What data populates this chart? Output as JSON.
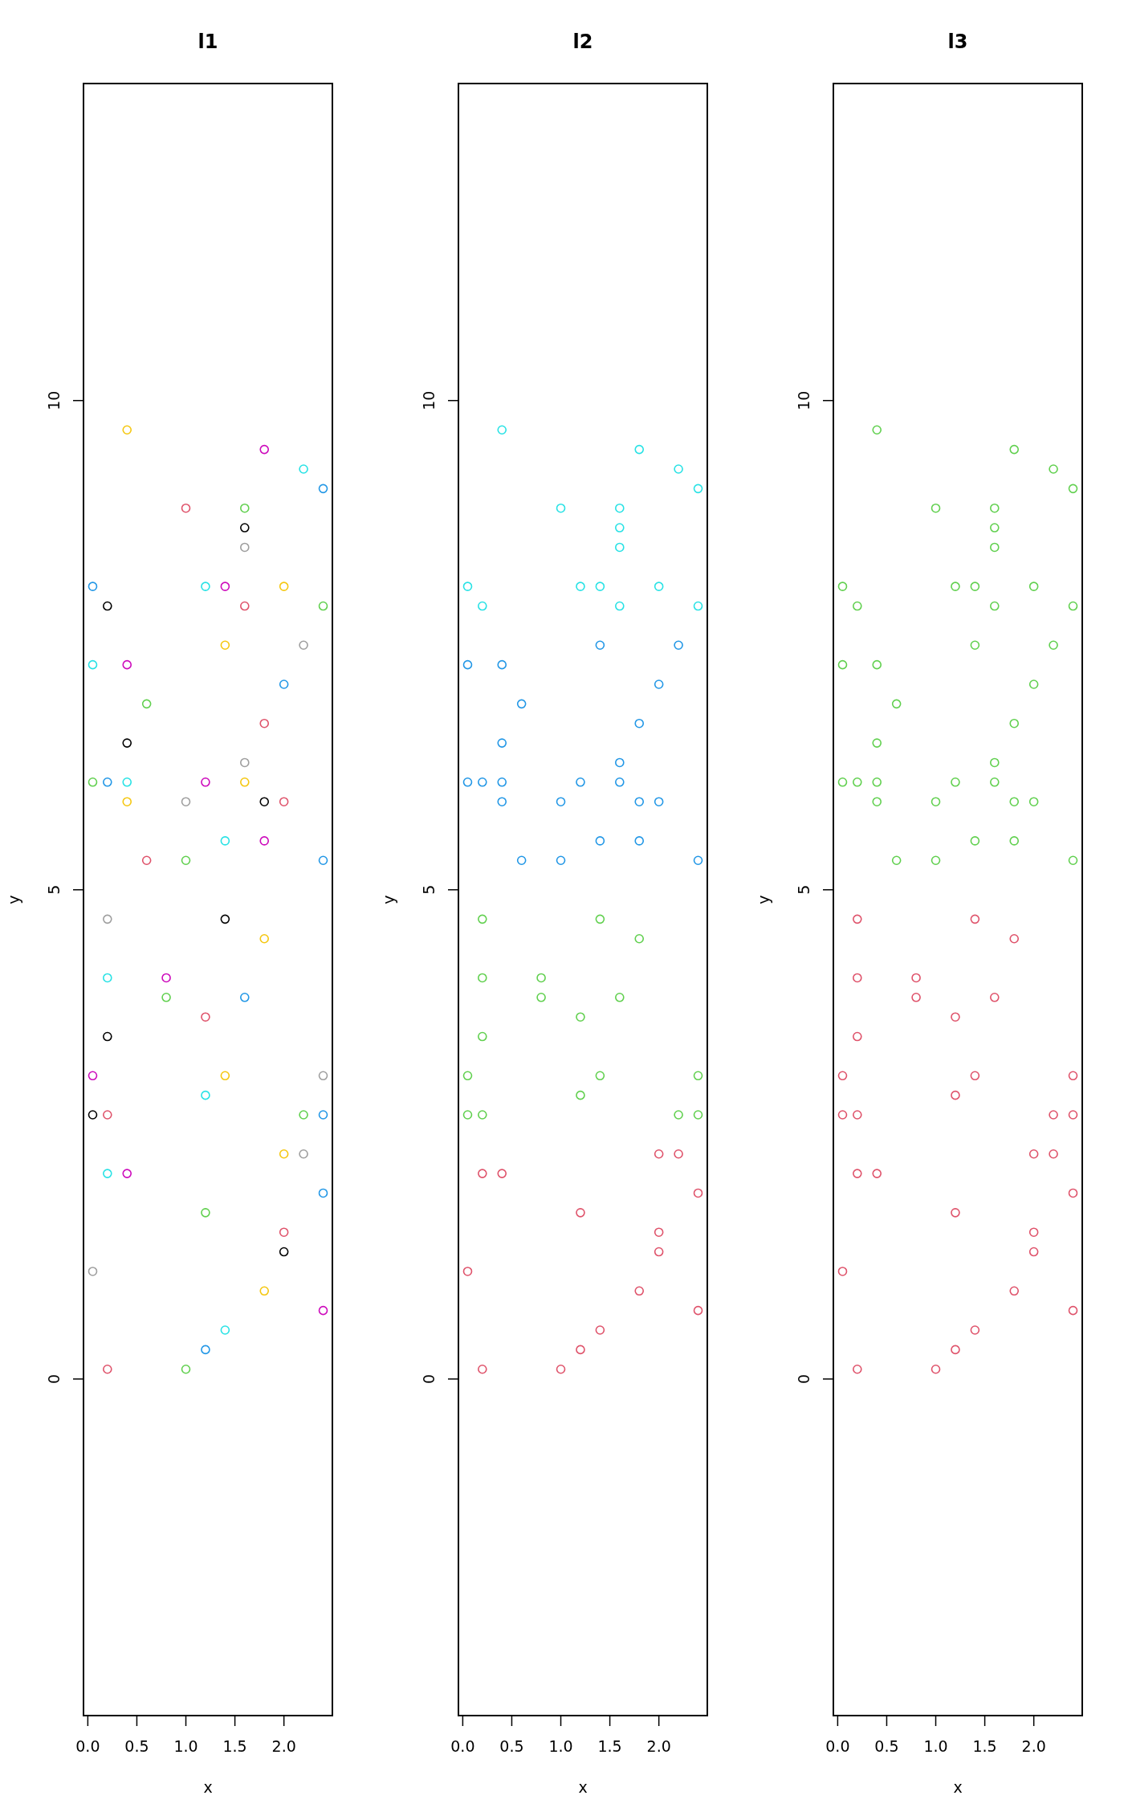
{
  "chart_data": [
    {
      "type": "scatter",
      "title": "l1",
      "xlabel": "x",
      "ylabel": "y",
      "xlim": [
        -0.044,
        2.494
      ],
      "ylim": [
        -3.44,
        13.24
      ],
      "xticks": [
        {
          "value": 0,
          "label": "0.0"
        },
        {
          "value": 0.5,
          "label": "0.5"
        },
        {
          "value": 1,
          "label": "1.0"
        },
        {
          "value": 1.5,
          "label": "1.5"
        },
        {
          "value": 2,
          "label": "2.0"
        }
      ],
      "yticks": [
        0,
        5,
        10
      ],
      "marker": "circle",
      "grid": false,
      "legend": false,
      "series": [
        {
          "color": "#000000",
          "x": [
            1.6,
            0.2,
            0.4,
            1.8,
            1.4,
            0.2,
            0.05,
            2.0
          ],
          "values": [
            8.7,
            7.9,
            6.5,
            5.9,
            4.7,
            3.5,
            2.7,
            1.3
          ]
        },
        {
          "color": "#df536b",
          "x": [
            1.0,
            1.6,
            1.8,
            2.0,
            0.6,
            1.2,
            0.2,
            2.0,
            0.2
          ],
          "values": [
            8.9,
            7.9,
            6.7,
            5.9,
            5.3,
            3.7,
            2.7,
            1.5,
            0.1
          ]
        },
        {
          "color": "#61d04f",
          "x": [
            1.6,
            2.4,
            0.6,
            0.05,
            1.0,
            0.8,
            2.2,
            1.2,
            1.0
          ],
          "values": [
            8.9,
            7.9,
            6.9,
            6.1,
            5.3,
            3.9,
            2.7,
            1.7,
            0.1
          ]
        },
        {
          "color": "#2297e6",
          "x": [
            2.4,
            0.05,
            2.0,
            0.2,
            2.4,
            1.6,
            2.4,
            2.4,
            1.2
          ],
          "values": [
            9.1,
            8.1,
            7.1,
            6.1,
            5.3,
            3.9,
            2.7,
            1.9,
            0.3
          ]
        },
        {
          "color": "#28e2e5",
          "x": [
            2.2,
            1.2,
            0.05,
            0.4,
            1.4,
            0.2,
            1.2,
            0.2,
            1.4
          ],
          "values": [
            9.3,
            8.1,
            7.3,
            6.1,
            5.5,
            4.1,
            2.9,
            2.1,
            0.5
          ]
        },
        {
          "color": "#cd0bbc",
          "x": [
            1.8,
            1.4,
            0.4,
            1.2,
            1.8,
            0.8,
            0.05,
            0.4,
            2.4
          ],
          "values": [
            9.5,
            8.1,
            7.3,
            6.1,
            5.5,
            4.1,
            3.1,
            2.1,
            0.7
          ]
        },
        {
          "color": "#f5c710",
          "x": [
            0.4,
            2.0,
            1.4,
            1.6,
            0.4,
            1.8,
            1.4,
            2.0,
            1.8
          ],
          "values": [
            9.7,
            8.1,
            7.5,
            6.1,
            5.9,
            4.5,
            3.1,
            2.3,
            0.9
          ]
        },
        {
          "color": "#9e9e9e",
          "x": [
            1.6,
            2.2,
            1.6,
            1.0,
            0.2,
            2.4,
            2.2,
            0.05
          ],
          "values": [
            8.5,
            7.5,
            6.3,
            5.9,
            4.7,
            3.1,
            2.3,
            1.1
          ]
        }
      ]
    },
    {
      "type": "scatter",
      "title": "l2",
      "xlabel": "x",
      "ylabel": "y",
      "xlim": [
        -0.044,
        2.494
      ],
      "ylim": [
        -3.44,
        13.24
      ],
      "xticks": [
        {
          "value": 0,
          "label": "0.0"
        },
        {
          "value": 0.5,
          "label": "0.5"
        },
        {
          "value": 1,
          "label": "1.0"
        },
        {
          "value": 1.5,
          "label": "1.5"
        },
        {
          "value": 2,
          "label": "2.0"
        }
      ],
      "yticks": [
        0,
        5,
        10
      ],
      "marker": "circle",
      "grid": false,
      "legend": false,
      "series": [
        {
          "color": "#df536b",
          "x": [
            2.0,
            2.2,
            0.2,
            0.4,
            2.4,
            1.2,
            2.0,
            2.0,
            0.05,
            1.8,
            2.4,
            1.4,
            1.2,
            0.2,
            1.0
          ],
          "values": [
            2.3,
            2.3,
            2.1,
            2.1,
            1.9,
            1.7,
            1.5,
            1.3,
            1.1,
            0.9,
            0.7,
            0.5,
            0.3,
            0.1,
            0.1
          ]
        },
        {
          "color": "#61d04f",
          "x": [
            0.2,
            1.4,
            1.8,
            0.2,
            0.8,
            0.8,
            1.6,
            1.2,
            0.2,
            0.05,
            1.4,
            2.4,
            1.2,
            0.05,
            0.2,
            2.2,
            2.4
          ],
          "values": [
            4.7,
            4.7,
            4.5,
            4.1,
            4.1,
            3.9,
            3.9,
            3.7,
            3.5,
            3.1,
            3.1,
            3.1,
            2.9,
            2.7,
            2.7,
            2.7,
            2.7
          ]
        },
        {
          "color": "#2297e6",
          "x": [
            1.4,
            2.2,
            0.05,
            0.4,
            2.0,
            0.6,
            1.8,
            0.4,
            1.6,
            0.05,
            0.2,
            0.4,
            1.2,
            1.6,
            0.4,
            1.0,
            1.8,
            2.0,
            1.4,
            1.8,
            0.6,
            1.0,
            2.4
          ],
          "values": [
            7.5,
            7.5,
            7.3,
            7.3,
            7.1,
            6.9,
            6.7,
            6.5,
            6.3,
            6.1,
            6.1,
            6.1,
            6.1,
            6.1,
            5.9,
            5.9,
            5.9,
            5.9,
            5.5,
            5.5,
            5.3,
            5.3,
            5.3
          ]
        },
        {
          "color": "#28e2e5",
          "x": [
            0.4,
            1.8,
            2.2,
            2.4,
            1.0,
            1.6,
            1.6,
            1.6,
            0.05,
            1.2,
            1.4,
            2.0,
            0.2,
            1.6,
            2.4
          ],
          "values": [
            9.7,
            9.5,
            9.3,
            9.1,
            8.9,
            8.9,
            8.7,
            8.5,
            8.1,
            8.1,
            8.1,
            8.1,
            7.9,
            7.9,
            7.9
          ]
        }
      ]
    },
    {
      "type": "scatter",
      "title": "l3",
      "xlabel": "x",
      "ylabel": "y",
      "xlim": [
        -0.044,
        2.494
      ],
      "ylim": [
        -3.44,
        13.24
      ],
      "xticks": [
        {
          "value": 0,
          "label": "0.0"
        },
        {
          "value": 0.5,
          "label": "0.5"
        },
        {
          "value": 1,
          "label": "1.0"
        },
        {
          "value": 1.5,
          "label": "1.5"
        },
        {
          "value": 2,
          "label": "2.0"
        }
      ],
      "yticks": [
        0,
        5,
        10
      ],
      "marker": "circle",
      "grid": false,
      "legend": false,
      "series": [
        {
          "color": "#df536b",
          "x": [
            0.2,
            1.4,
            1.8,
            0.2,
            0.8,
            0.8,
            1.6,
            1.2,
            0.2,
            0.05,
            1.4,
            2.4,
            1.2,
            0.05,
            0.2,
            2.2,
            2.4,
            2.0,
            2.2,
            0.2,
            0.4,
            2.4,
            1.2,
            2.0,
            2.0,
            0.05,
            1.8,
            2.4,
            1.4,
            1.2,
            0.2,
            1.0
          ],
          "values": [
            4.7,
            4.7,
            4.5,
            4.1,
            4.1,
            3.9,
            3.9,
            3.7,
            3.5,
            3.1,
            3.1,
            3.1,
            2.9,
            2.7,
            2.7,
            2.7,
            2.7,
            2.3,
            2.3,
            2.1,
            2.1,
            1.9,
            1.7,
            1.5,
            1.3,
            1.1,
            0.9,
            0.7,
            0.5,
            0.3,
            0.1,
            0.1
          ]
        },
        {
          "color": "#61d04f",
          "x": [
            0.4,
            1.8,
            2.2,
            2.4,
            1.0,
            1.6,
            1.6,
            1.6,
            0.05,
            1.2,
            1.4,
            2.0,
            0.2,
            1.6,
            2.4,
            1.4,
            2.2,
            0.05,
            0.4,
            2.0,
            0.6,
            1.8,
            0.4,
            1.6,
            0.05,
            0.2,
            0.4,
            1.2,
            1.6,
            0.4,
            1.0,
            1.8,
            2.0,
            1.4,
            1.8,
            0.6,
            1.0,
            2.4
          ],
          "values": [
            9.7,
            9.5,
            9.3,
            9.1,
            8.9,
            8.9,
            8.7,
            8.5,
            8.1,
            8.1,
            8.1,
            8.1,
            7.9,
            7.9,
            7.9,
            7.5,
            7.5,
            7.3,
            7.3,
            7.1,
            6.9,
            6.7,
            6.5,
            6.3,
            6.1,
            6.1,
            6.1,
            6.1,
            6.1,
            5.9,
            5.9,
            5.9,
            5.9,
            5.5,
            5.5,
            5.3,
            5.3,
            5.3
          ]
        }
      ]
    }
  ]
}
